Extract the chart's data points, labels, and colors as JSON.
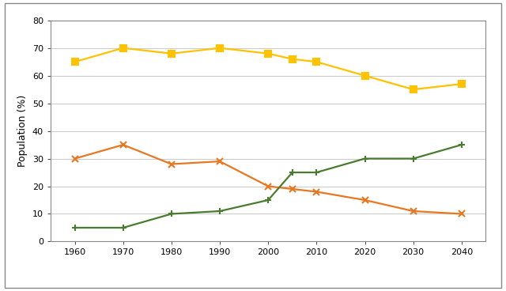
{
  "years": [
    1960,
    1970,
    1980,
    1990,
    2000,
    2005,
    2010,
    2020,
    2030,
    2040
  ],
  "series": {
    "0-14": {
      "values": [
        30,
        35,
        28,
        29,
        20,
        19,
        18,
        15,
        11,
        10
      ],
      "color": "#E87722",
      "marker": "x"
    },
    "25-64": {
      "values": [
        65,
        70,
        68,
        70,
        68,
        66,
        65,
        60,
        55,
        57
      ],
      "color": "#FFC200",
      "marker": "s"
    },
    "65+": {
      "values": [
        5,
        5,
        10,
        11,
        15,
        25,
        25,
        30,
        30,
        35
      ],
      "color": "#4A7C2F",
      "marker": "+"
    }
  },
  "ylabel": "Population (%)",
  "ylim": [
    0,
    80
  ],
  "yticks": [
    0,
    10,
    20,
    30,
    40,
    50,
    60,
    70,
    80
  ],
  "xlim": [
    1955,
    2045
  ],
  "xticks": [
    1960,
    1970,
    1980,
    1990,
    2000,
    2010,
    2020,
    2030,
    2040
  ],
  "grid_color": "#cccccc",
  "background_color": "#ffffff",
  "border_color": "#888888",
  "markersize": 6,
  "linewidth": 1.6,
  "outer_box_color": "#888888"
}
